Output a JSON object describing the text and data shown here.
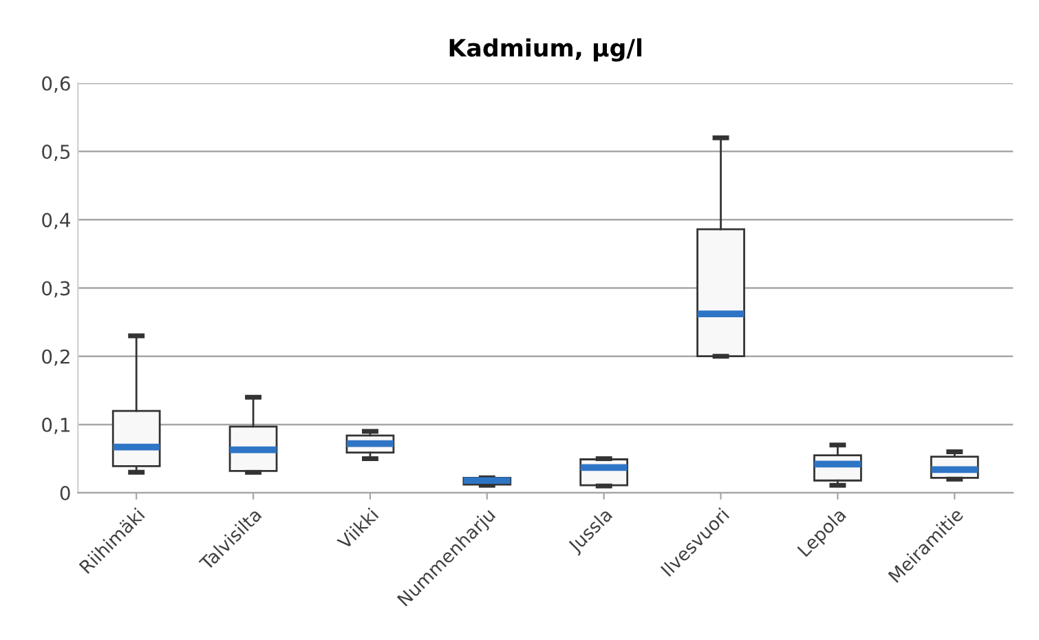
{
  "chart_data": {
    "type": "box",
    "title": "Kadmium, µg/l",
    "categories": [
      "Riihimäki",
      "Talvisilta",
      "Viikki",
      "Nummenharju",
      "Jussla",
      "Ilvesvuori",
      "Lepola",
      "Meiramitie"
    ],
    "boxes": [
      {
        "low": 0.03,
        "q1": 0.039,
        "median": 0.067,
        "q3": 0.12,
        "high": 0.23
      },
      {
        "low": 0.03,
        "q1": 0.032,
        "median": 0.063,
        "q3": 0.097,
        "high": 0.14
      },
      {
        "low": 0.05,
        "q1": 0.059,
        "median": 0.072,
        "q3": 0.084,
        "high": 0.09
      },
      {
        "low": 0.011,
        "q1": 0.012,
        "median": 0.018,
        "q3": 0.022,
        "high": 0.022
      },
      {
        "low": 0.01,
        "q1": 0.011,
        "median": 0.037,
        "q3": 0.049,
        "high": 0.05
      },
      {
        "low": 0.2,
        "q1": 0.2,
        "median": 0.262,
        "q3": 0.386,
        "high": 0.52
      },
      {
        "low": 0.011,
        "q1": 0.018,
        "median": 0.042,
        "q3": 0.055,
        "high": 0.07
      },
      {
        "low": 0.02,
        "q1": 0.022,
        "median": 0.034,
        "q3": 0.053,
        "high": 0.06
      }
    ],
    "ylim": [
      0,
      0.6
    ],
    "yticks": [
      {
        "value": 0,
        "label": "0"
      },
      {
        "value": 0.1,
        "label": "0,1"
      },
      {
        "value": 0.2,
        "label": "0,2"
      },
      {
        "value": 0.3,
        "label": "0,3"
      },
      {
        "value": 0.4,
        "label": "0,4"
      },
      {
        "value": 0.5,
        "label": "0,5"
      },
      {
        "value": 0.6,
        "label": "0,6"
      }
    ],
    "grid": "y",
    "legend": false
  }
}
